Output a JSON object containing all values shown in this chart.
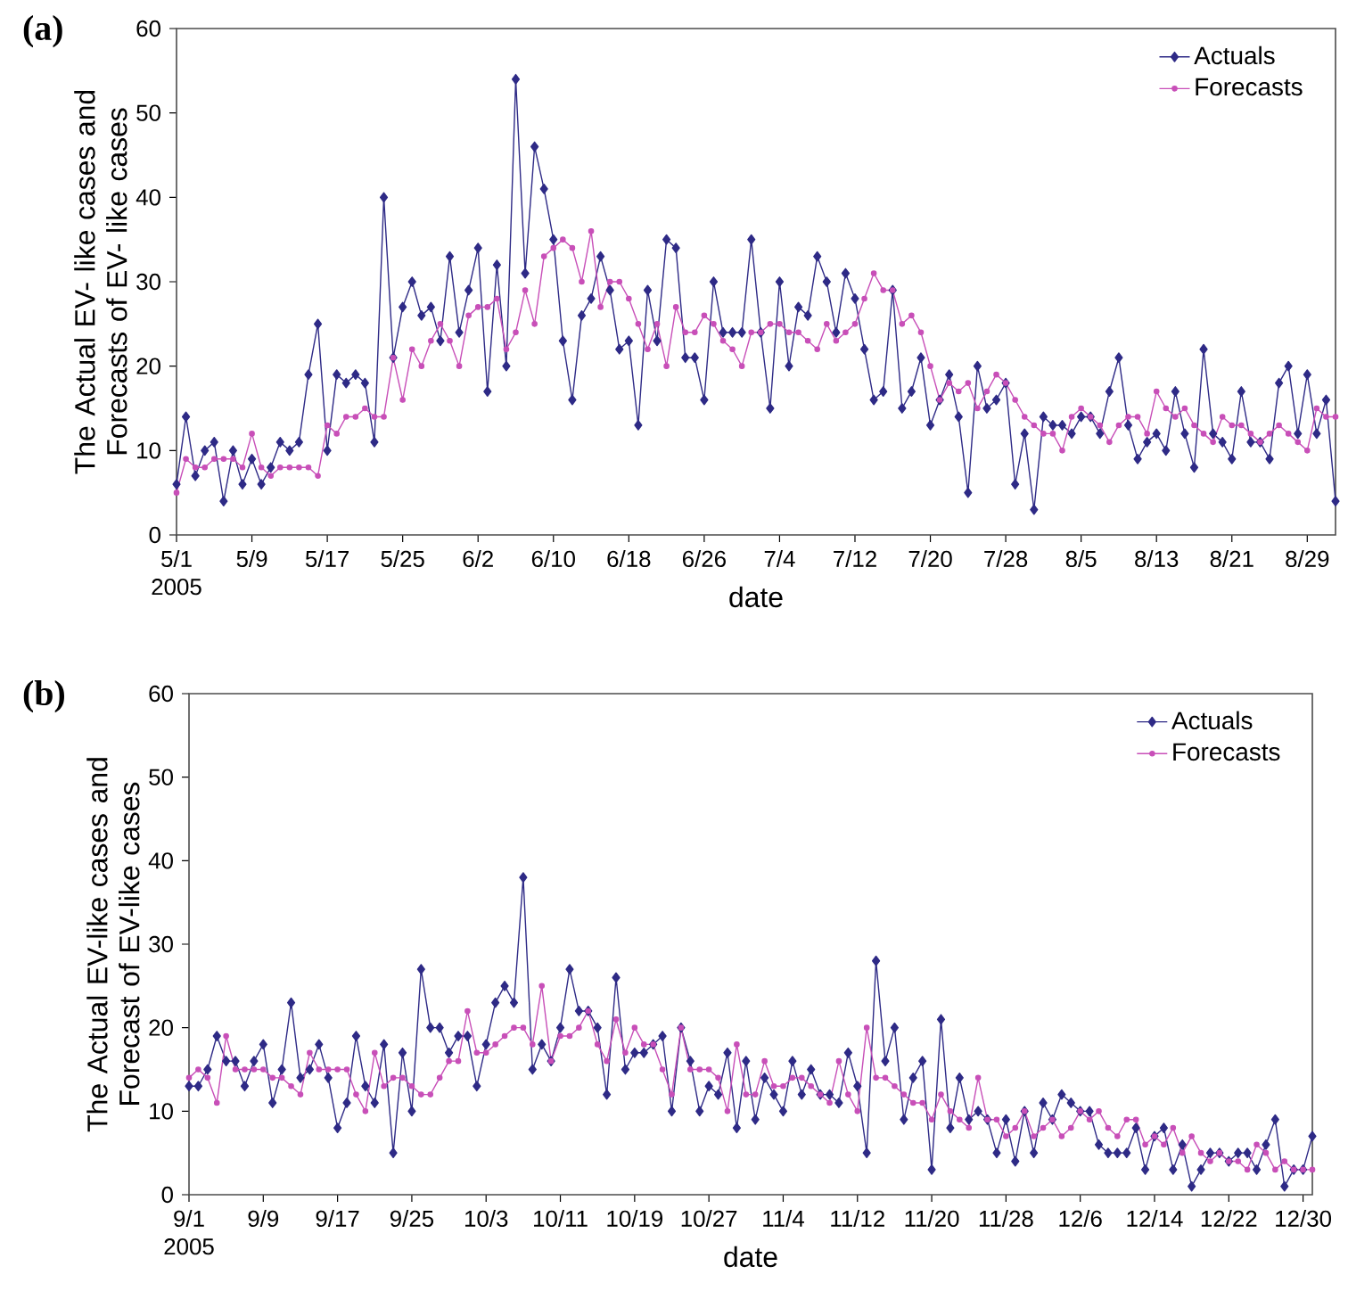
{
  "chart_data": [
    {
      "type": "line",
      "title": "(a)",
      "xlabel": "date",
      "ylabel": "The Actual EV- like cases and Forecasts of EV- like cases",
      "annotations": [
        "2005"
      ],
      "x": [
        "2005-05-01",
        "2005-05-02",
        "2005-05-03",
        "2005-05-04",
        "2005-05-05",
        "2005-05-06",
        "2005-05-07",
        "2005-05-08",
        "2005-05-09",
        "2005-05-10",
        "2005-05-11",
        "2005-05-12",
        "2005-05-13",
        "2005-05-14",
        "2005-05-15",
        "2005-05-16",
        "2005-05-17",
        "2005-05-18",
        "2005-05-19",
        "2005-05-20",
        "2005-05-21",
        "2005-05-22",
        "2005-05-23",
        "2005-05-24",
        "2005-05-25",
        "2005-05-26",
        "2005-05-27",
        "2005-05-28",
        "2005-05-29",
        "2005-05-30",
        "2005-05-31",
        "2005-06-01",
        "2005-06-02",
        "2005-06-03",
        "2005-06-04",
        "2005-06-05",
        "2005-06-06",
        "2005-06-07",
        "2005-06-08",
        "2005-06-09",
        "2005-06-10",
        "2005-06-11",
        "2005-06-12",
        "2005-06-13",
        "2005-06-14",
        "2005-06-15",
        "2005-06-16",
        "2005-06-17",
        "2005-06-18",
        "2005-06-19",
        "2005-06-20",
        "2005-06-21",
        "2005-06-22",
        "2005-06-23",
        "2005-06-24",
        "2005-06-25",
        "2005-06-26",
        "2005-06-27",
        "2005-06-28",
        "2005-06-29",
        "2005-06-30",
        "2005-07-01",
        "2005-07-02",
        "2005-07-03",
        "2005-07-04",
        "2005-07-05",
        "2005-07-06",
        "2005-07-07",
        "2005-07-08",
        "2005-07-09",
        "2005-07-10",
        "2005-07-11",
        "2005-07-12",
        "2005-07-13",
        "2005-07-14",
        "2005-07-15",
        "2005-07-16",
        "2005-07-17",
        "2005-07-18",
        "2005-07-19",
        "2005-07-20",
        "2005-07-21",
        "2005-07-22",
        "2005-07-23",
        "2005-07-24",
        "2005-07-25",
        "2005-07-26",
        "2005-07-27",
        "2005-07-28",
        "2005-07-29",
        "2005-07-30",
        "2005-07-31",
        "2005-08-01",
        "2005-08-02",
        "2005-08-03",
        "2005-08-04",
        "2005-08-05",
        "2005-08-06",
        "2005-08-07",
        "2005-08-08",
        "2005-08-09",
        "2005-08-10",
        "2005-08-11",
        "2005-08-12",
        "2005-08-13",
        "2005-08-14",
        "2005-08-15",
        "2005-08-16",
        "2005-08-17",
        "2005-08-18",
        "2005-08-19",
        "2005-08-20",
        "2005-08-21",
        "2005-08-22",
        "2005-08-23",
        "2005-08-24",
        "2005-08-25",
        "2005-08-26",
        "2005-08-27",
        "2005-08-28",
        "2005-08-29",
        "2005-08-30",
        "2005-08-31",
        "2005-09-01"
      ],
      "series": [
        {
          "name": "Actuals",
          "color": "#2e2a86",
          "marker": "diamond",
          "values": [
            6,
            14,
            7,
            10,
            11,
            4,
            10,
            6,
            9,
            6,
            8,
            11,
            10,
            11,
            19,
            25,
            10,
            19,
            18,
            19,
            18,
            11,
            40,
            21,
            27,
            30,
            26,
            27,
            23,
            33,
            24,
            29,
            34,
            17,
            32,
            20,
            54,
            31,
            46,
            41,
            35,
            23,
            16,
            26,
            28,
            33,
            29,
            22,
            23,
            13,
            29,
            23,
            35,
            34,
            21,
            21,
            16,
            30,
            24,
            24,
            24,
            35,
            24,
            15,
            30,
            20,
            27,
            26,
            33,
            30,
            24,
            31,
            28,
            22,
            16,
            17,
            29,
            15,
            17,
            21,
            13,
            16,
            19,
            14,
            5,
            20,
            15,
            16,
            18,
            6,
            12,
            3,
            14,
            13,
            13,
            12,
            14,
            14,
            12,
            17,
            21,
            13,
            9,
            11,
            12,
            10,
            17,
            12,
            8,
            22,
            12,
            11,
            9,
            17,
            11,
            11,
            9,
            18,
            20,
            12,
            19,
            12,
            16,
            4
          ]
        },
        {
          "name": "Forecasts",
          "color": "#c84fb8",
          "marker": "circle",
          "values": [
            5,
            9,
            8,
            8,
            9,
            9,
            9,
            8,
            12,
            8,
            7,
            8,
            8,
            8,
            8,
            7,
            13,
            12,
            14,
            14,
            15,
            14,
            14,
            21,
            16,
            22,
            20,
            23,
            25,
            23,
            20,
            26,
            27,
            27,
            28,
            22,
            24,
            29,
            25,
            33,
            34,
            35,
            34,
            30,
            36,
            27,
            30,
            30,
            28,
            25,
            22,
            25,
            20,
            27,
            24,
            24,
            26,
            25,
            23,
            22,
            20,
            24,
            24,
            25,
            25,
            24,
            24,
            23,
            22,
            25,
            23,
            24,
            25,
            28,
            31,
            29,
            29,
            25,
            26,
            24,
            20,
            16,
            18,
            17,
            18,
            15,
            17,
            19,
            18,
            16,
            14,
            13,
            12,
            12,
            10,
            14,
            15,
            14,
            13,
            11,
            13,
            14,
            14,
            12,
            17,
            15,
            14,
            15,
            13,
            12,
            11,
            14,
            13,
            13,
            12,
            11,
            12,
            13,
            12,
            11,
            10,
            15,
            14,
            14
          ]
        }
      ],
      "xlim": [
        "2005-05-01",
        "2005-09-01"
      ],
      "xticks": [
        {
          "value": "2005-05-01",
          "label": "5/1"
        },
        {
          "value": "2005-05-09",
          "label": "5/9"
        },
        {
          "value": "2005-05-17",
          "label": "5/17"
        },
        {
          "value": "2005-05-25",
          "label": "5/25"
        },
        {
          "value": "2005-06-02",
          "label": "6/2"
        },
        {
          "value": "2005-06-10",
          "label": "6/10"
        },
        {
          "value": "2005-06-18",
          "label": "6/18"
        },
        {
          "value": "2005-06-26",
          "label": "6/26"
        },
        {
          "value": "2005-07-04",
          "label": "7/4"
        },
        {
          "value": "2005-07-12",
          "label": "7/12"
        },
        {
          "value": "2005-07-20",
          "label": "7/20"
        },
        {
          "value": "2005-07-28",
          "label": "7/28"
        },
        {
          "value": "2005-08-05",
          "label": "8/5"
        },
        {
          "value": "2005-08-13",
          "label": "8/13"
        },
        {
          "value": "2005-08-21",
          "label": "8/21"
        },
        {
          "value": "2005-08-29",
          "label": "8/29"
        }
      ],
      "ylim": [
        0,
        60
      ],
      "yticks": [
        0,
        10,
        20,
        30,
        40,
        50,
        60
      ],
      "grid": false,
      "legend": "top right"
    },
    {
      "type": "line",
      "title": "(b)",
      "xlabel": "date",
      "ylabel": "The Actual EV-like cases and Forecast of EV-like cases",
      "annotations": [
        "2005"
      ],
      "x": [
        "2005-09-01",
        "2005-09-02",
        "2005-09-03",
        "2005-09-04",
        "2005-09-05",
        "2005-09-06",
        "2005-09-07",
        "2005-09-08",
        "2005-09-09",
        "2005-09-10",
        "2005-09-11",
        "2005-09-12",
        "2005-09-13",
        "2005-09-14",
        "2005-09-15",
        "2005-09-16",
        "2005-09-17",
        "2005-09-18",
        "2005-09-19",
        "2005-09-20",
        "2005-09-21",
        "2005-09-22",
        "2005-09-23",
        "2005-09-24",
        "2005-09-25",
        "2005-09-26",
        "2005-09-27",
        "2005-09-28",
        "2005-09-29",
        "2005-09-30",
        "2005-10-01",
        "2005-10-02",
        "2005-10-03",
        "2005-10-04",
        "2005-10-05",
        "2005-10-06",
        "2005-10-07",
        "2005-10-08",
        "2005-10-09",
        "2005-10-10",
        "2005-10-11",
        "2005-10-12",
        "2005-10-13",
        "2005-10-14",
        "2005-10-15",
        "2005-10-16",
        "2005-10-17",
        "2005-10-18",
        "2005-10-19",
        "2005-10-20",
        "2005-10-21",
        "2005-10-22",
        "2005-10-23",
        "2005-10-24",
        "2005-10-25",
        "2005-10-26",
        "2005-10-27",
        "2005-10-28",
        "2005-10-29",
        "2005-10-30",
        "2005-10-31",
        "2005-11-01",
        "2005-11-02",
        "2005-11-03",
        "2005-11-04",
        "2005-11-05",
        "2005-11-06",
        "2005-11-07",
        "2005-11-08",
        "2005-11-09",
        "2005-11-10",
        "2005-11-11",
        "2005-11-12",
        "2005-11-13",
        "2005-11-14",
        "2005-11-15",
        "2005-11-16",
        "2005-11-17",
        "2005-11-18",
        "2005-11-19",
        "2005-11-20",
        "2005-11-21",
        "2005-11-22",
        "2005-11-23",
        "2005-11-24",
        "2005-11-25",
        "2005-11-26",
        "2005-11-27",
        "2005-11-28",
        "2005-11-29",
        "2005-11-30",
        "2005-12-01",
        "2005-12-02",
        "2005-12-03",
        "2005-12-04",
        "2005-12-05",
        "2005-12-06",
        "2005-12-07",
        "2005-12-08",
        "2005-12-09",
        "2005-12-10",
        "2005-12-11",
        "2005-12-12",
        "2005-12-13",
        "2005-12-14",
        "2005-12-15",
        "2005-12-16",
        "2005-12-17",
        "2005-12-18",
        "2005-12-19",
        "2005-12-20",
        "2005-12-21",
        "2005-12-22",
        "2005-12-23",
        "2005-12-24",
        "2005-12-25",
        "2005-12-26",
        "2005-12-27",
        "2005-12-28",
        "2005-12-29",
        "2005-12-30",
        "2005-12-31"
      ],
      "series": [
        {
          "name": "Actuals",
          "color": "#2e2a86",
          "marker": "diamond",
          "values": [
            13,
            13,
            15,
            19,
            16,
            16,
            13,
            16,
            18,
            11,
            15,
            23,
            14,
            15,
            18,
            14,
            8,
            11,
            19,
            13,
            11,
            18,
            5,
            17,
            10,
            27,
            20,
            20,
            17,
            19,
            19,
            13,
            18,
            23,
            25,
            23,
            38,
            15,
            18,
            16,
            20,
            27,
            22,
            22,
            20,
            12,
            26,
            15,
            17,
            17,
            18,
            19,
            10,
            20,
            16,
            10,
            13,
            12,
            17,
            8,
            16,
            9,
            14,
            12,
            10,
            16,
            12,
            15,
            12,
            12,
            11,
            17,
            13,
            5,
            28,
            16,
            20,
            9,
            14,
            16,
            3,
            21,
            8,
            14,
            9,
            10,
            9,
            5,
            9,
            4,
            10,
            5,
            11,
            9,
            12,
            11,
            10,
            10,
            6,
            5,
            5,
            5,
            8,
            3,
            7,
            8,
            3,
            6,
            1,
            3,
            5,
            5,
            4,
            5,
            5,
            3,
            6,
            9,
            1,
            3,
            3,
            7
          ]
        },
        {
          "name": "Forecasts",
          "color": "#c84fb8",
          "marker": "circle",
          "values": [
            14,
            15,
            14,
            11,
            19,
            15,
            15,
            15,
            15,
            14,
            14,
            13,
            12,
            17,
            15,
            15,
            15,
            15,
            12,
            10,
            17,
            13,
            14,
            14,
            13,
            12,
            12,
            14,
            16,
            16,
            22,
            17,
            17,
            18,
            19,
            20,
            20,
            18,
            25,
            16,
            19,
            19,
            20,
            22,
            18,
            16,
            21,
            17,
            20,
            18,
            18,
            15,
            12,
            20,
            15,
            15,
            15,
            14,
            10,
            18,
            12,
            12,
            16,
            13,
            13,
            14,
            14,
            13,
            12,
            11,
            16,
            12,
            10,
            20,
            14,
            14,
            13,
            12,
            11,
            11,
            9,
            12,
            10,
            9,
            8,
            14,
            9,
            9,
            7,
            8,
            10,
            7,
            8,
            9,
            7,
            8,
            10,
            9,
            10,
            8,
            7,
            9,
            9,
            6,
            7,
            6,
            8,
            5,
            7,
            5,
            4,
            5,
            4,
            4,
            3,
            6,
            5,
            3,
            4,
            3,
            3,
            3
          ]
        }
      ],
      "xlim": [
        "2005-09-01",
        "2005-12-31"
      ],
      "xticks": [
        {
          "value": "2005-09-01",
          "label": "9/1"
        },
        {
          "value": "2005-09-09",
          "label": "9/9"
        },
        {
          "value": "2005-09-17",
          "label": "9/17"
        },
        {
          "value": "2005-09-25",
          "label": "9/25"
        },
        {
          "value": "2005-10-03",
          "label": "10/3"
        },
        {
          "value": "2005-10-11",
          "label": "10/11"
        },
        {
          "value": "2005-10-19",
          "label": "10/19"
        },
        {
          "value": "2005-10-27",
          "label": "10/27"
        },
        {
          "value": "2005-11-04",
          "label": "11/4"
        },
        {
          "value": "2005-11-12",
          "label": "11/12"
        },
        {
          "value": "2005-11-20",
          "label": "11/20"
        },
        {
          "value": "2005-11-28",
          "label": "11/28"
        },
        {
          "value": "2005-12-06",
          "label": "12/6"
        },
        {
          "value": "2005-12-14",
          "label": "12/14"
        },
        {
          "value": "2005-12-22",
          "label": "12/22"
        },
        {
          "value": "2005-12-30",
          "label": "12/30"
        }
      ],
      "ylim": [
        0,
        60
      ],
      "yticks": [
        0,
        10,
        20,
        30,
        40,
        50,
        60
      ],
      "grid": false,
      "legend": "top right"
    }
  ]
}
